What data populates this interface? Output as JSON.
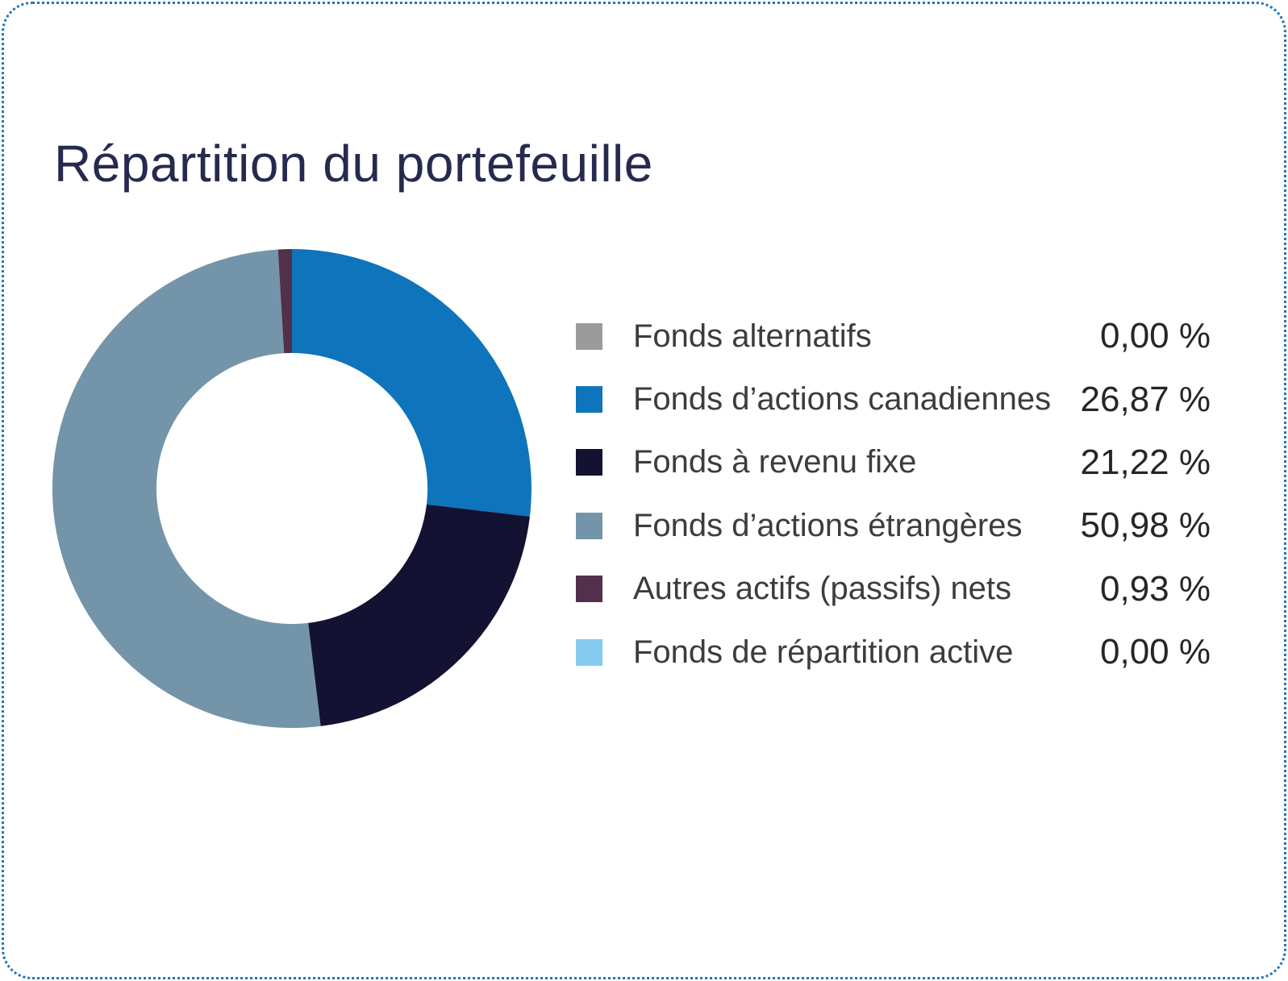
{
  "card": {
    "border_color": "#1C75BC",
    "background": "#FFFFFF",
    "title_color": "#252A4E"
  },
  "chart_data": {
    "type": "pie",
    "donut": true,
    "title": "Répartition du portefeuille",
    "start_angle_deg": 0,
    "direction": "clockwise",
    "legend_position": "right",
    "inner_radius_ratio": 0.566,
    "segments": [
      {
        "label": "Fonds alternatifs",
        "value": 0.0,
        "value_label": "0,00 %",
        "color": "#9B9B9B"
      },
      {
        "label": "Fonds d’actions canadiennes",
        "value": 26.87,
        "value_label": "26,87 %",
        "color": "#0E74BC"
      },
      {
        "label": "Fonds à revenu fixe",
        "value": 21.22,
        "value_label": "21,22 %",
        "color": "#141232"
      },
      {
        "label": "Fonds d’actions étrangères",
        "value": 50.98,
        "value_label": "50,98 %",
        "color": "#7494A9"
      },
      {
        "label": "Autres actifs (passifs) nets",
        "value": 0.93,
        "value_label": "0,93 %",
        "color": "#52304B"
      },
      {
        "label": "Fonds de répartition active",
        "value": 0.0,
        "value_label": "0,00 %",
        "color": "#85CBEF"
      }
    ]
  }
}
